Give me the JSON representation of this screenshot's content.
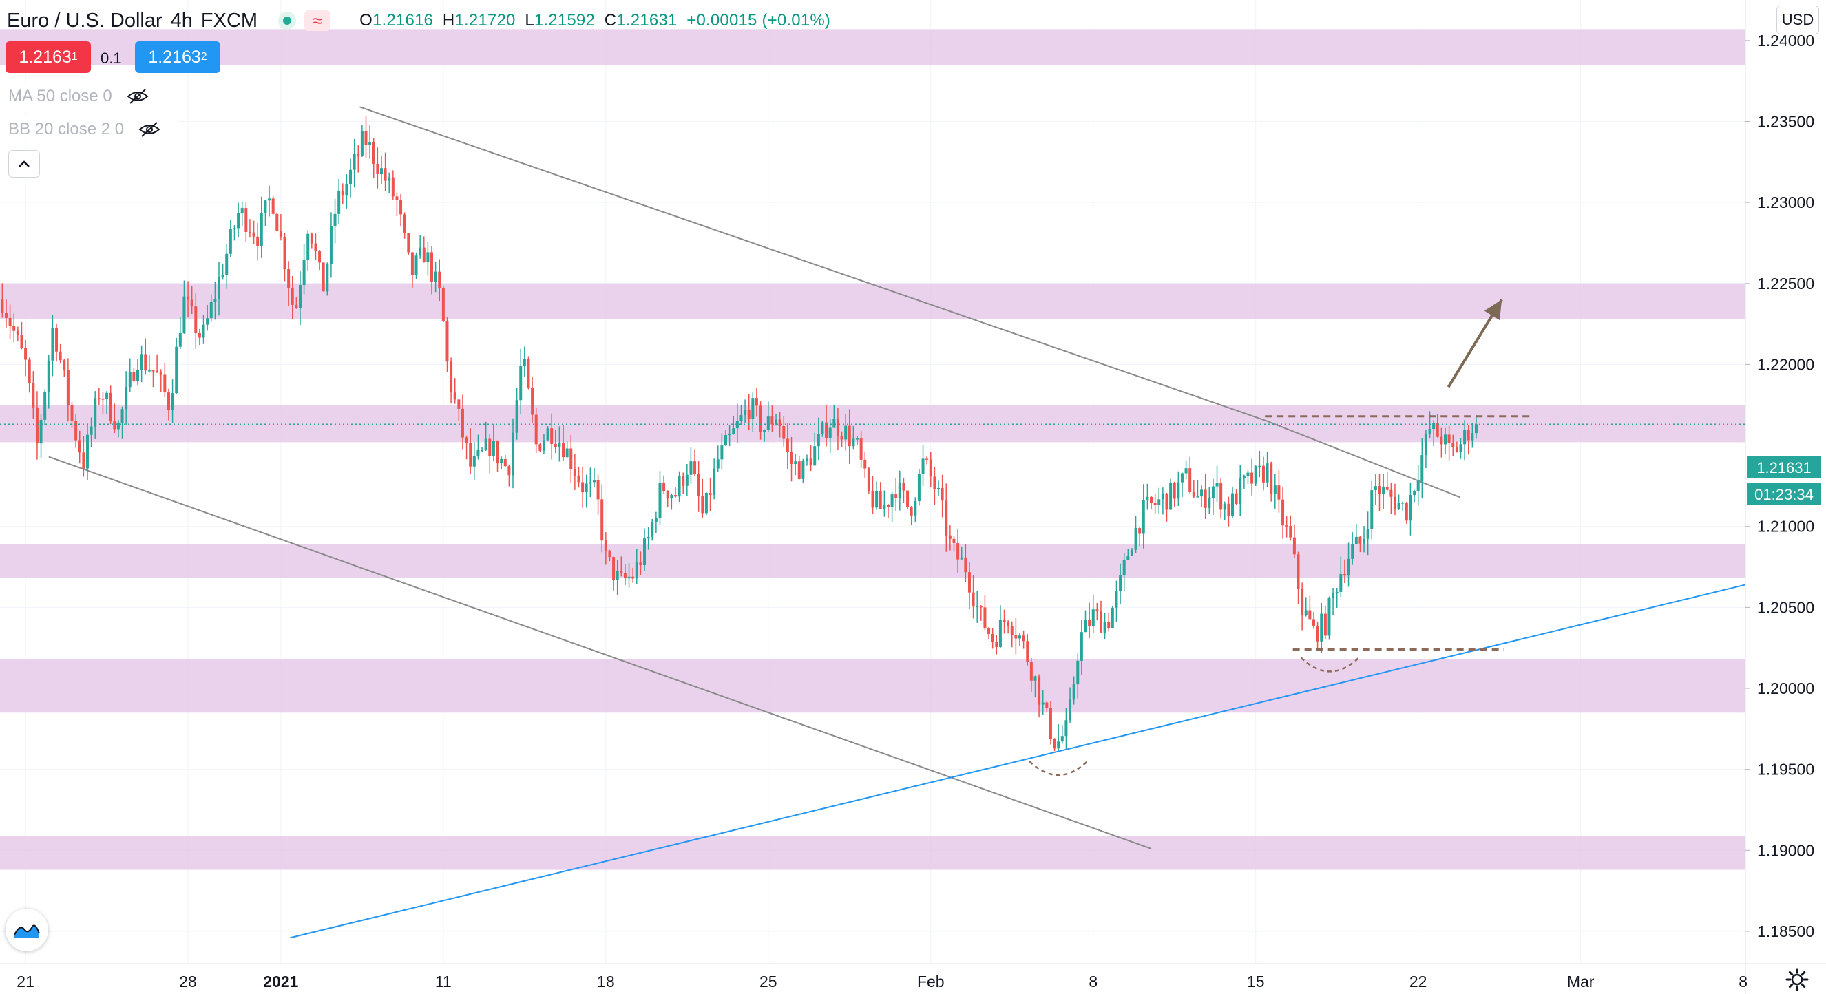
{
  "header": {
    "symbol": "Euro / U.S. Dollar",
    "interval": "4h",
    "source": "FXCM",
    "market_status_icon": "market-open-dot-icon",
    "compare_icon": "approx-icon",
    "ohlc": {
      "o_label": "O",
      "o": "1.21616",
      "h_label": "H",
      "h": "1.21720",
      "l_label": "L",
      "l": "1.21592",
      "c_label": "C",
      "c": "1.21631",
      "change": "+0.00015 (+0.01%)"
    }
  },
  "trade": {
    "sell_main": "1.2163",
    "sell_sup": "1",
    "spread": "0.1",
    "buy_main": "1.2163",
    "buy_sup": "2"
  },
  "indicators": [
    {
      "label": "MA 50 close 0",
      "icon": "eye-hidden-icon"
    },
    {
      "label": "BB 20 close 2 0",
      "icon": "eye-hidden-icon"
    }
  ],
  "currency_button": "USD",
  "price_badge": {
    "price": "1.21631",
    "countdown": "01:23:34"
  },
  "colors": {
    "up": "#26a69a",
    "down": "#ef5350",
    "zone": "#e6c9e9",
    "trendline": "#8a8a8a",
    "blue_line": "#2196f3",
    "dashed": "#8c6a5a",
    "arrow": "#7d6a55",
    "badge": "#26a69a"
  },
  "chart_data": {
    "type": "candlestick",
    "y_ticks": [
      "1.24000",
      "1.23500",
      "1.23000",
      "1.22500",
      "1.22000",
      "1.21000",
      "1.20500",
      "1.20000",
      "1.19500",
      "1.19000",
      "1.18500"
    ],
    "ylim": [
      1.183,
      1.2425
    ],
    "x_ticks": [
      {
        "label": "21",
        "day": -16
      },
      {
        "label": "28",
        "day": -9
      },
      {
        "label": "2021",
        "day": -5
      },
      {
        "label": "11",
        "day": 2
      },
      {
        "label": "18",
        "day": 9
      },
      {
        "label": "25",
        "day": 16
      },
      {
        "label": "Feb",
        "day": 23
      },
      {
        "label": "8",
        "day": 30
      },
      {
        "label": "15",
        "day": 37
      },
      {
        "label": "22",
        "day": 44
      },
      {
        "label": "Mar",
        "day": 51
      },
      {
        "label": "8",
        "day": 58
      }
    ],
    "xlim_days": [
      -17.1,
      58.1
    ],
    "zones": [
      [
        1.2385,
        1.2407
      ],
      [
        1.2228,
        1.225
      ],
      [
        1.2152,
        1.2175
      ],
      [
        1.2068,
        1.2089
      ],
      [
        1.1985,
        1.2018
      ],
      [
        1.1888,
        1.1909
      ]
    ],
    "trendlines": [
      {
        "style": "grey",
        "from": [
          -1.6,
          1.2359
        ],
        "to": [
          37.5,
          1.2165
        ]
      },
      {
        "style": "grey",
        "from": [
          37.5,
          1.2165
        ],
        "to": [
          45.8,
          1.2118
        ]
      },
      {
        "style": "grey",
        "from": [
          -15.0,
          1.2143
        ],
        "to": [
          32.5,
          1.1901
        ]
      },
      {
        "style": "blue",
        "from": [
          -4.6,
          1.1846
        ],
        "to": [
          58.1,
          1.2064
        ]
      }
    ],
    "dashed_levels": [
      {
        "price": 1.2168,
        "from_day": 37.4,
        "to_day": 48.8
      },
      {
        "price": 1.2024,
        "from_day": 38.6,
        "to_day": 47.7
      }
    ],
    "bottom_arcs": [
      {
        "center_day": 28.5,
        "price": 1.1949
      },
      {
        "center_day": 40.2,
        "price": 1.2013
      }
    ],
    "arrow": {
      "from": [
        45.3,
        1.2186
      ],
      "to": [
        47.6,
        1.224
      ]
    },
    "current_price": 1.21631,
    "keypoints": [
      [
        -17.0,
        1.224
      ],
      [
        -16.0,
        1.22
      ],
      [
        -15.5,
        1.215
      ],
      [
        -14.8,
        1.2225
      ],
      [
        -14.0,
        1.2165
      ],
      [
        -13.5,
        1.214
      ],
      [
        -12.8,
        1.2185
      ],
      [
        -12.0,
        1.2162
      ],
      [
        -11.2,
        1.2205
      ],
      [
        -10.4,
        1.2195
      ],
      [
        -9.8,
        1.2175
      ],
      [
        -9.2,
        1.224
      ],
      [
        -8.4,
        1.2215
      ],
      [
        -7.6,
        1.2255
      ],
      [
        -6.8,
        1.2295
      ],
      [
        -6.0,
        1.228
      ],
      [
        -5.4,
        1.2305
      ],
      [
        -4.9,
        1.227
      ],
      [
        -4.4,
        1.223
      ],
      [
        -3.8,
        1.229
      ],
      [
        -3.2,
        1.2245
      ],
      [
        -2.6,
        1.23
      ],
      [
        -2.2,
        1.231
      ],
      [
        -1.4,
        1.234
      ],
      [
        -0.7,
        1.232
      ],
      [
        0.0,
        1.23
      ],
      [
        0.6,
        1.2255
      ],
      [
        1.2,
        1.227
      ],
      [
        1.9,
        1.224
      ],
      [
        2.2,
        1.2195
      ],
      [
        2.6,
        1.217
      ],
      [
        3.2,
        1.2135
      ],
      [
        4.0,
        1.215
      ],
      [
        4.8,
        1.2135
      ],
      [
        5.4,
        1.2205
      ],
      [
        6.0,
        1.215
      ],
      [
        6.6,
        1.216
      ],
      [
        7.2,
        1.215
      ],
      [
        8.0,
        1.2125
      ],
      [
        8.6,
        1.212
      ],
      [
        9.0,
        1.208
      ],
      [
        9.6,
        1.2065
      ],
      [
        10.2,
        1.207
      ],
      [
        10.8,
        1.209
      ],
      [
        11.4,
        1.2125
      ],
      [
        12.0,
        1.212
      ],
      [
        12.6,
        1.214
      ],
      [
        13.2,
        1.2105
      ],
      [
        13.8,
        1.214
      ],
      [
        14.6,
        1.216
      ],
      [
        15.2,
        1.2175
      ],
      [
        15.8,
        1.216
      ],
      [
        16.4,
        1.217
      ],
      [
        16.9,
        1.214
      ],
      [
        17.5,
        1.2135
      ],
      [
        18.1,
        1.215
      ],
      [
        18.6,
        1.2165
      ],
      [
        19.2,
        1.216
      ],
      [
        19.8,
        1.215
      ],
      [
        20.3,
        1.212
      ],
      [
        20.9,
        1.211
      ],
      [
        21.5,
        1.2125
      ],
      [
        22.1,
        1.211
      ],
      [
        22.7,
        1.214
      ],
      [
        23.3,
        1.212
      ],
      [
        23.9,
        1.2085
      ],
      [
        24.5,
        1.2075
      ],
      [
        25.1,
        1.2045
      ],
      [
        25.7,
        1.203
      ],
      [
        26.3,
        1.2045
      ],
      [
        26.9,
        1.203
      ],
      [
        27.4,
        1.201
      ],
      [
        27.9,
        1.1985
      ],
      [
        28.4,
        1.1965
      ],
      [
        28.9,
        1.1975
      ],
      [
        29.4,
        1.203
      ],
      [
        30.0,
        1.2045
      ],
      [
        30.6,
        1.204
      ],
      [
        31.1,
        1.206
      ],
      [
        31.6,
        1.209
      ],
      [
        32.2,
        1.211
      ],
      [
        32.8,
        1.2115
      ],
      [
        33.4,
        1.212
      ],
      [
        34.0,
        1.213
      ],
      [
        34.6,
        1.2115
      ],
      [
        35.2,
        1.2125
      ],
      [
        35.8,
        1.211
      ],
      [
        36.4,
        1.2125
      ],
      [
        37.0,
        1.213
      ],
      [
        37.5,
        1.2135
      ],
      [
        38.0,
        1.211
      ],
      [
        38.5,
        1.209
      ],
      [
        39.0,
        1.205
      ],
      [
        39.5,
        1.2035
      ],
      [
        40.0,
        1.204
      ],
      [
        40.6,
        1.207
      ],
      [
        41.1,
        1.2085
      ],
      [
        41.6,
        1.209
      ],
      [
        42.1,
        1.2125
      ],
      [
        42.6,
        1.212
      ],
      [
        43.1,
        1.2115
      ],
      [
        43.5,
        1.211
      ],
      [
        44.0,
        1.2135
      ],
      [
        44.5,
        1.216
      ],
      [
        45.0,
        1.2155
      ],
      [
        45.4,
        1.2145
      ],
      [
        45.8,
        1.215
      ],
      [
        46.2,
        1.216
      ],
      [
        46.5,
        1.21631
      ]
    ]
  }
}
